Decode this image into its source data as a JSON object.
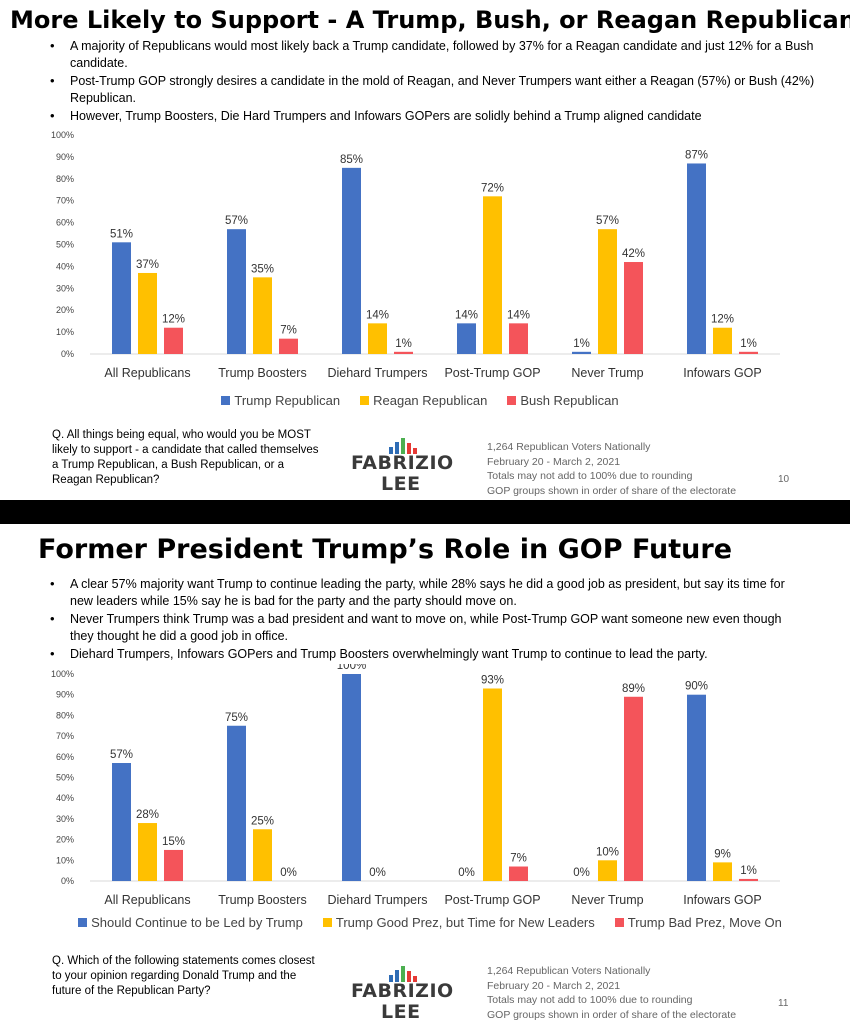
{
  "slides": [
    {
      "title": "More Likely to Support  - A Trump, Bush, or Reagan Republican",
      "bullets": [
        "A majority of Republicans would most likely back a Trump candidate, followed by 37% for a Reagan candidate and just 12% for a Bush candidate.",
        "Post-Trump GOP strongly desires a candidate in the mold of Reagan, and Never Trumpers want either a Reagan (57%) or Bush (42%) Republican.",
        "However, Trump Boosters, Die Hard Trumpers and Infowars GOPers are solidly behind a Trump aligned candidate"
      ],
      "question": "Q. All things being equal, who would you be MOST likely to support - a candidate that called themselves a Trump Republican, a Bush Republican, or a Reagan Republican?",
      "source_lines": [
        "1,264 Republican Voters Nationally",
        "February 20 - March 2, 2021",
        "Totals may not add to 100% due to rounding",
        "GOP groups shown in order of share of the electorate"
      ],
      "page_number": "10",
      "logo": {
        "line1": "FABRIZIO",
        "line2": "LEE"
      }
    },
    {
      "title": "Former President Trump’s Role in GOP Future",
      "bullets": [
        "A clear 57% majority want Trump to continue leading the party, while 28% says he did a good job as president, but say its time for new leaders while 15% say he is bad for the party and the party should move on.",
        "Never Trumpers think Trump was a bad president and want to move on, while Post-Trump GOP want someone new even though they thought he did a good job in office.",
        "Diehard Trumpers, Infowars GOPers and Trump Boosters overwhelmingly want Trump to continue to lead the party."
      ],
      "question": "Q. Which of the following statements comes closest to your opinion regarding Donald Trump and the future of the Republican Party?",
      "source_lines": [
        "1,264 Republican Voters Nationally",
        "February 20 - March 2, 2021",
        "Totals may not add to 100% due to rounding",
        "GOP groups shown in order of share of the electorate"
      ],
      "page_number": "11",
      "logo": {
        "line1": "FABRIZIO",
        "line2": "LEE"
      }
    }
  ],
  "colors": {
    "blue": "#4472C4",
    "yellow": "#FFC000",
    "red": "#F4545A",
    "logo_blue": "#2E6CB5",
    "logo_green": "#4CAF50",
    "logo_red": "#E53935"
  },
  "chart_data": [
    {
      "type": "bar",
      "categories": [
        "All Republicans",
        "Trump Boosters",
        "Diehard Trumpers",
        "Post-Trump GOP",
        "Never Trump",
        "Infowars GOP"
      ],
      "series": [
        {
          "name": "Trump Republican",
          "color": "#4472C4",
          "values": [
            51,
            57,
            85,
            14,
            1,
            87
          ],
          "labels": [
            "51%",
            "57%",
            "85%",
            "14%",
            "1%",
            "87%"
          ]
        },
        {
          "name": "Reagan Republican",
          "color": "#FFC000",
          "values": [
            37,
            35,
            14,
            72,
            57,
            12
          ],
          "labels": [
            "37%",
            "35%",
            "14%",
            "72%",
            "57%",
            "12%"
          ]
        },
        {
          "name": "Bush Republican",
          "color": "#F4545A",
          "values": [
            12,
            7,
            1,
            14,
            42,
            1
          ],
          "labels": [
            "12%",
            "7%",
            "1%",
            "14%",
            "42%",
            "1%"
          ]
        }
      ],
      "yticks": [
        "0%",
        "10%",
        "20%",
        "30%",
        "40%",
        "50%",
        "60%",
        "70%",
        "80%",
        "90%",
        "100%"
      ],
      "ylim": [
        0,
        100
      ],
      "grid": false,
      "legend": "bottom"
    },
    {
      "type": "bar",
      "categories": [
        "All Republicans",
        "Trump Boosters",
        "Diehard Trumpers",
        "Post-Trump GOP",
        "Never Trump",
        "Infowars GOP"
      ],
      "series": [
        {
          "name": "Should Continue to be Led by Trump",
          "color": "#4472C4",
          "values": [
            57,
            75,
            100,
            0,
            0,
            90
          ],
          "labels": [
            "57%",
            "75%",
            "100%",
            "0%",
            "0%",
            "90%"
          ]
        },
        {
          "name": "Trump Good Prez, but Time for New Leaders",
          "color": "#FFC000",
          "values": [
            28,
            25,
            0,
            93,
            10,
            9
          ],
          "labels": [
            "28%",
            "25%",
            "0%",
            "93%",
            "10%",
            "9%"
          ]
        },
        {
          "name": "Trump Bad Prez, Move On",
          "color": "#F4545A",
          "values": [
            15,
            0,
            0,
            7,
            89,
            1
          ],
          "labels": [
            "15%",
            "0%",
            "",
            "7%",
            "89%",
            "1%"
          ]
        }
      ],
      "yticks": [
        "0%",
        "10%",
        "20%",
        "30%",
        "40%",
        "50%",
        "60%",
        "70%",
        "80%",
        "90%",
        "100%"
      ],
      "ylim": [
        0,
        100
      ],
      "grid": false,
      "legend": "bottom"
    }
  ]
}
